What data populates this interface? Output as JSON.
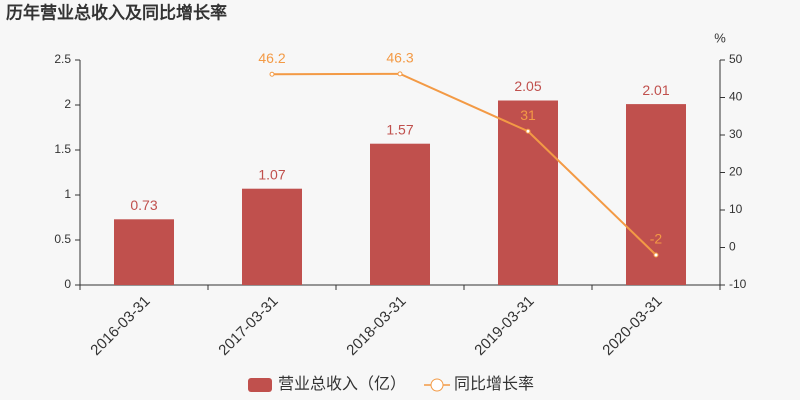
{
  "chart_data": {
    "type": "bar",
    "title": "历年营业总收入及同比增长率",
    "categories": [
      "2016-03-31",
      "2017-03-31",
      "2018-03-31",
      "2019-03-31",
      "2020-03-31"
    ],
    "series": [
      {
        "name": "营业总收入（亿）",
        "type": "bar",
        "color": "#c0504d",
        "values": [
          0.73,
          1.07,
          1.57,
          2.05,
          2.01
        ]
      },
      {
        "name": "同比增长率",
        "type": "line",
        "axis": "y2",
        "color": "#f39a45",
        "values": [
          null,
          46.2,
          46.3,
          31,
          -2
        ]
      }
    ],
    "ylim": [
      0,
      2.5
    ],
    "yticks": [
      0,
      0.5,
      1,
      1.5,
      2,
      2.5
    ],
    "y2label": "%",
    "y2lim": [
      -10,
      50
    ],
    "y2ticks": [
      -10,
      0,
      10,
      20,
      30,
      40,
      50
    ],
    "grid": false,
    "legend": "bottom"
  }
}
